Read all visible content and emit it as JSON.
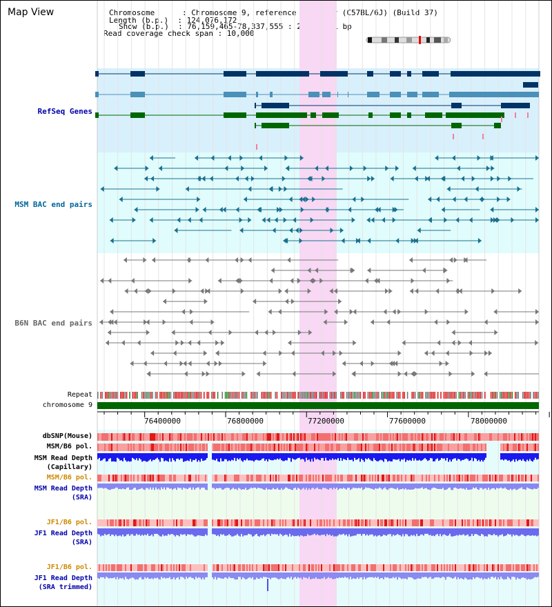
{
  "header": {
    "title": "Map View",
    "info_lines": [
      "Chromosome      : Chromosome 9, reference assembly (C57BL/6J) (Build 37)",
      "Length (b.p.)  : 124,076,172",
      "Show (b.p.)  : 76,159,465-78,337,555 : 2,178,091 bp",
      "Read coverage check span : 10,000"
    ]
  },
  "tracks": {
    "refseq": "RefSeq Genes",
    "msm_bac": "MSM BAC end pairs",
    "b6n_bac": "B6N BAC end pairs",
    "repeat": "Repeat",
    "chromosome": "chromosome 9",
    "dbsnp": "dbSNP(Mouse)",
    "msm_b6_pol_1": "MSM/B6 pol.",
    "msm_read_depth_cap": "MSM Read Depth\n(Capillary)",
    "msm_b6_pol_2": "MSM/B6 pol.",
    "msm_read_depth_sra": "MSM Read Depth\n(SRA)",
    "jf1_b6_pol_1": "JF1/B6 pol.",
    "jf1_read_depth_sra": "JF1 Read Depth\n(SRA)",
    "jf1_b6_pol_2": "JF1/B6 pol.",
    "jf1_read_depth_trim": "JF1 Read Depth\n(SRA trimmed)"
  },
  "axis": {
    "ticks": [
      "76400000",
      "76800000",
      "77200000",
      "77600000",
      "78000000"
    ]
  },
  "colors": {
    "highlight": "#f8d8f4",
    "refseq_bg": "#d8f0fc",
    "bac_bg": "#e0fcfc",
    "gene_dark": "#003366",
    "gene_light": "#4a90b8",
    "gene_green": "#006600",
    "chromosome_bar": "#006600",
    "msm_label": "#006699",
    "refseq_label": "#0000aa",
    "b6n_label": "#666666",
    "orange_label": "#cc8800",
    "blue_label": "#0000aa"
  }
}
